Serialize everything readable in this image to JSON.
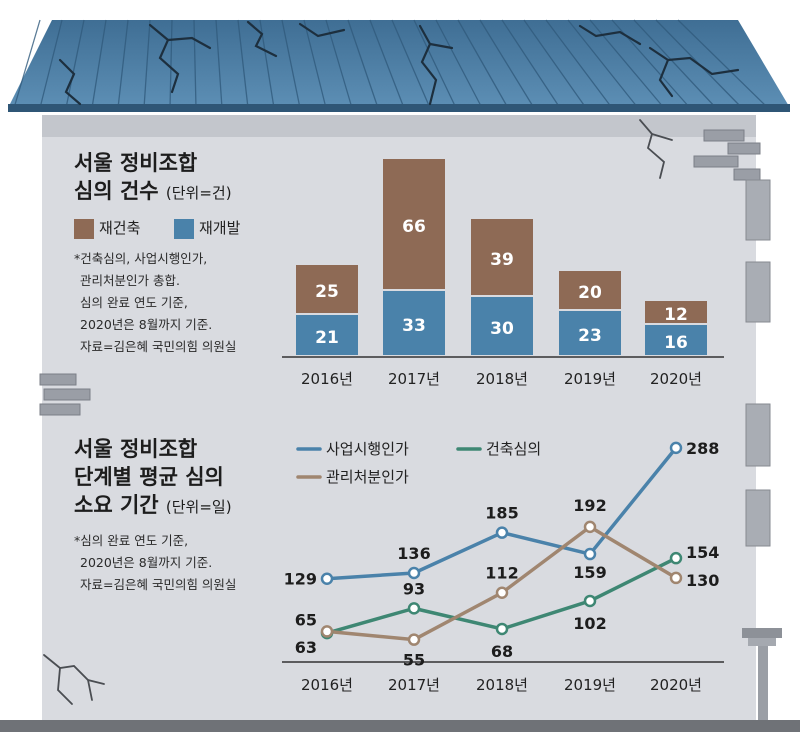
{
  "colors": {
    "wall": "#d9dbe0",
    "roof": "#46759b",
    "reconstruction": "#8e6a55",
    "redevelopment": "#4a82aa",
    "project_approval": "#4a82aa",
    "reconstruction_review": "#3e8773",
    "management_approval": "#a08670",
    "ground": "#6f7277"
  },
  "top_chart": {
    "title_line1": "서울 정비조합",
    "title_line2": "심의 건수",
    "unit": "(단위=건)",
    "legend": [
      {
        "label": "재건축",
        "color": "#8e6a55"
      },
      {
        "label": "재개발",
        "color": "#4a82aa"
      }
    ],
    "notes": [
      "*건축심의, 사업시행인가,",
      "관리처분인가 총합.",
      "심의 완료 연도 기준,",
      "2020년은 8월까지 기준.",
      "자료=김은혜 국민의힘 의원실"
    ]
  },
  "bottom_chart": {
    "title_line1": "서울 정비조합",
    "title_line2": "단계별 평균 심의",
    "title_line3": "소요 기간",
    "unit": "(단위=일)",
    "notes": [
      "*심의 완료 연도 기준,",
      "2020년은 8월까지 기준.",
      "자료=김은혜 국민의힘 의원실"
    ],
    "legend": [
      {
        "label": "사업시행인가",
        "color": "#4a82aa"
      },
      {
        "label": "건축심의",
        "color": "#3e8773"
      },
      {
        "label": "관리처분인가",
        "color": "#a08670"
      }
    ]
  },
  "chart_data": [
    {
      "type": "bar",
      "stacked": true,
      "categories": [
        "2016년",
        "2017년",
        "2018년",
        "2019년",
        "2020년"
      ],
      "series": [
        {
          "name": "재개발",
          "values": [
            21,
            33,
            30,
            23,
            16
          ]
        },
        {
          "name": "재건축",
          "values": [
            25,
            66,
            39,
            20,
            12
          ]
        }
      ],
      "title": "서울 정비조합 심의 건수"
    },
    {
      "type": "line",
      "categories": [
        "2016년",
        "2017년",
        "2018년",
        "2019년",
        "2020년"
      ],
      "series": [
        {
          "name": "사업시행인가",
          "values": [
            129,
            136,
            185,
            159,
            288
          ]
        },
        {
          "name": "건축심의",
          "values": [
            63,
            93,
            68,
            102,
            154
          ]
        },
        {
          "name": "관리처분인가",
          "values": [
            65,
            55,
            112,
            192,
            130
          ]
        }
      ],
      "title": "서울 정비조합 단계별 평균 심의 소요 기간"
    }
  ]
}
